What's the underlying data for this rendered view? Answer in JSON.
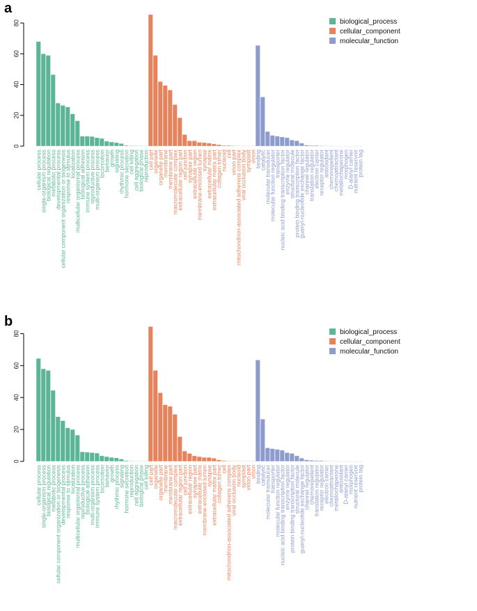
{
  "colors": {
    "biological_process": "#5bb596",
    "cellular_component": "#e6835d",
    "molecular_function": "#8d9ccc"
  },
  "chart_data": [
    {
      "type": "bar",
      "panel": "a",
      "ylim": [
        0,
        85
      ],
      "yticks": [
        0,
        20,
        40,
        60,
        80
      ],
      "legend_position": "top-right",
      "legend": [
        "biological_process",
        "cellular_component",
        "molecular_function"
      ],
      "series": [
        {
          "name": "biological_process",
          "categories": [
            "cellular process",
            "single-organism process",
            "biological regulation",
            "metabolic process",
            "developmental process",
            "cellular component organization or biogenesis",
            "response to stimulus",
            "localization",
            "multicellular organismal process",
            "biological adhesion",
            "immune system process",
            "reproductive process",
            "multi-organism process",
            "locomotion",
            "behavior",
            "growth",
            "signaling",
            "rhythmic process",
            "hormone secretion",
            "cell killing",
            "cell aggregation",
            "biological phase",
            "reproduction"
          ],
          "values": [
            68,
            60,
            59,
            46.5,
            28,
            26.5,
            25.5,
            21,
            16.5,
            6.5,
            6.5,
            6.3,
            5.5,
            5,
            3.2,
            2.7,
            2.3,
            1.7,
            0.5,
            0.3,
            0.3,
            0.2,
            0.2
          ]
        },
        {
          "name": "cellular_component",
          "categories": [
            "cell part",
            "organelle",
            "organelle part",
            "membrane",
            "membrane part",
            "macromolecular complex",
            "extracellular region part",
            "cell junction",
            "synapse part",
            "extracellular region",
            "membrane-enclosed lumen",
            "synapse",
            "extracellular matrix",
            "extracellular matrix part",
            "collagen trimer",
            "nucleoid",
            "cell",
            "virion part",
            "mitochondrion-associated adherens complex",
            "viral occlusion body",
            "symplast",
            "virion"
          ],
          "values": [
            85.5,
            59,
            42,
            39.5,
            36.5,
            27,
            18.5,
            7.5,
            3.5,
            3.5,
            2.5,
            2.3,
            2,
            1.5,
            1,
            0.5,
            0.5,
            0.3,
            0.2,
            0.2,
            0.2,
            0.2
          ]
        },
        {
          "name": "molecular_function",
          "categories": [
            "binding",
            "catalytic",
            "molecular transducer",
            "molecular function regulator",
            "transporter",
            "nucleic acid binding transcription factor",
            "enzyme regulator",
            "structural molecule",
            "protein binding transcription factor",
            "guanyl-nucleotide exchange factor",
            "channel regulator",
            "translation regulator",
            "electron carrier",
            "receptor regulator",
            "antioxidant",
            "chemorepellent",
            "chemoattractant",
            "metallochaperone",
            "morphogen",
            "D-alanyl carrier",
            "nutrient reservoir",
            "protein tag"
          ],
          "values": [
            65.5,
            32,
            9.5,
            7,
            6.5,
            6,
            5.5,
            4,
            3.5,
            2,
            0.7,
            0.5,
            0.5,
            0.3,
            0.2,
            0.2,
            0.1,
            0.1,
            0.1,
            0.1,
            0.1,
            0.1
          ]
        }
      ]
    },
    {
      "type": "bar",
      "panel": "b",
      "ylim": [
        0,
        85
      ],
      "yticks": [
        0,
        20,
        40,
        60,
        80
      ],
      "legend_position": "top-right",
      "legend": [
        "biological_process",
        "cellular_component",
        "molecular_function"
      ],
      "series": [
        {
          "name": "biological_process",
          "categories": [
            "cellular process",
            "single-organism process",
            "biological regulation",
            "metabolic process",
            "cellular component organization or biogenesis",
            "developmental process",
            "response to stimulus",
            "localization",
            "multicellular organismal process",
            "reproductive process",
            "biological adhesion",
            "multi-organism process",
            "immune system process",
            "locomotion",
            "behavior",
            "growth",
            "rhythmic process",
            "signaling",
            "hormone secretion",
            "reproduction",
            "cell aggregation",
            "biological phase",
            "cell killing"
          ],
          "values": [
            64.5,
            58,
            57,
            44.5,
            28,
            25.5,
            21,
            20,
            16.5,
            6,
            5.8,
            5.5,
            5.2,
            3.5,
            3,
            2.5,
            2.2,
            1.5,
            0.5,
            0.3,
            0.2,
            0.2,
            0.2
          ]
        },
        {
          "name": "cellular_component",
          "categories": [
            "cell part",
            "organelle",
            "organelle part",
            "membrane",
            "membrane part",
            "macromolecular complex",
            "extracellular region part",
            "cell junction",
            "extracellular region",
            "synapse part",
            "extracellular matrix",
            "membrane-enclosed lumen",
            "synapse",
            "extracellular matrix part",
            "collagen trimer",
            "cell",
            "mitochondrion-associated adherens complex",
            "viral occlusion body",
            "nucleoid",
            "symplast",
            "virion part",
            "virion"
          ],
          "values": [
            84.5,
            57,
            43,
            35.5,
            34.5,
            29.5,
            15.5,
            6.5,
            5,
            3.5,
            3,
            2.5,
            2.5,
            2,
            1,
            0.5,
            0.3,
            0.2,
            0.2,
            0.2,
            0.2,
            0.2
          ]
        },
        {
          "name": "molecular_function",
          "categories": [
            "binding",
            "catalytic",
            "molecular transducer",
            "transporter",
            "molecular function regulator",
            "nucleic acid binding transcription factor",
            "enzyme regulator",
            "protein binding transcription factor",
            "structural molecule",
            "guanyl-nucleotide exchange factor",
            "channel regulator",
            "chemorepellent",
            "translation regulator",
            "receptor regulator",
            "electron carrier",
            "chemoattractant",
            "metallochaperone",
            "antioxidant",
            "D-alanyl carrier",
            "morphogen",
            "nutrient reservoir",
            "protein tag"
          ],
          "values": [
            63.5,
            26.5,
            8.5,
            8,
            7.5,
            7,
            5.5,
            5,
            3.5,
            2,
            1,
            0.7,
            0.5,
            0.5,
            0.3,
            0.2,
            0.2,
            0.1,
            0.1,
            0.1,
            0.1,
            0.1
          ]
        }
      ]
    }
  ]
}
